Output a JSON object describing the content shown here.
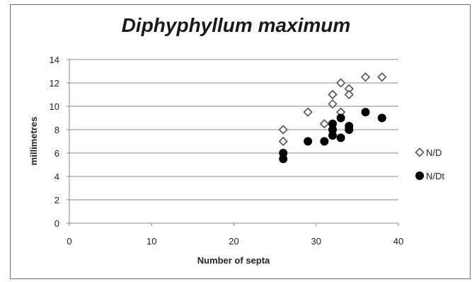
{
  "chart_data": {
    "type": "scatter",
    "title": "Diphyphyllum maximum",
    "xlabel": "Number of septa",
    "ylabel": "millimetres",
    "xlim": [
      0,
      40
    ],
    "ylim": [
      0,
      14
    ],
    "xticks": [
      0,
      10,
      20,
      30,
      40
    ],
    "yticks": [
      0,
      2,
      4,
      6,
      8,
      10,
      12,
      14
    ],
    "grid": "horizontal",
    "legend_position": "right",
    "series": [
      {
        "name": "N/D",
        "marker": "open-diamond",
        "color": "#555555",
        "points": [
          {
            "x": 26,
            "y": 8.0
          },
          {
            "x": 26,
            "y": 7.0
          },
          {
            "x": 29,
            "y": 9.5
          },
          {
            "x": 31,
            "y": 8.5
          },
          {
            "x": 32,
            "y": 11.0
          },
          {
            "x": 32,
            "y": 11.0
          },
          {
            "x": 32,
            "y": 10.2
          },
          {
            "x": 33,
            "y": 12.0
          },
          {
            "x": 33,
            "y": 9.5
          },
          {
            "x": 34,
            "y": 11.5
          },
          {
            "x": 34,
            "y": 11.0
          },
          {
            "x": 36,
            "y": 12.5
          },
          {
            "x": 38,
            "y": 12.5
          }
        ]
      },
      {
        "name": "N/Dt",
        "marker": "filled-circle",
        "color": "#000000",
        "points": [
          {
            "x": 26,
            "y": 6.0
          },
          {
            "x": 26,
            "y": 5.5
          },
          {
            "x": 29,
            "y": 7.0
          },
          {
            "x": 31,
            "y": 7.0
          },
          {
            "x": 32,
            "y": 8.5
          },
          {
            "x": 32,
            "y": 8.0
          },
          {
            "x": 32,
            "y": 7.5
          },
          {
            "x": 33,
            "y": 9.0
          },
          {
            "x": 33,
            "y": 7.3
          },
          {
            "x": 34,
            "y": 8.3
          },
          {
            "x": 34,
            "y": 8.0
          },
          {
            "x": 36,
            "y": 9.5
          },
          {
            "x": 38,
            "y": 9.0
          }
        ]
      }
    ]
  }
}
